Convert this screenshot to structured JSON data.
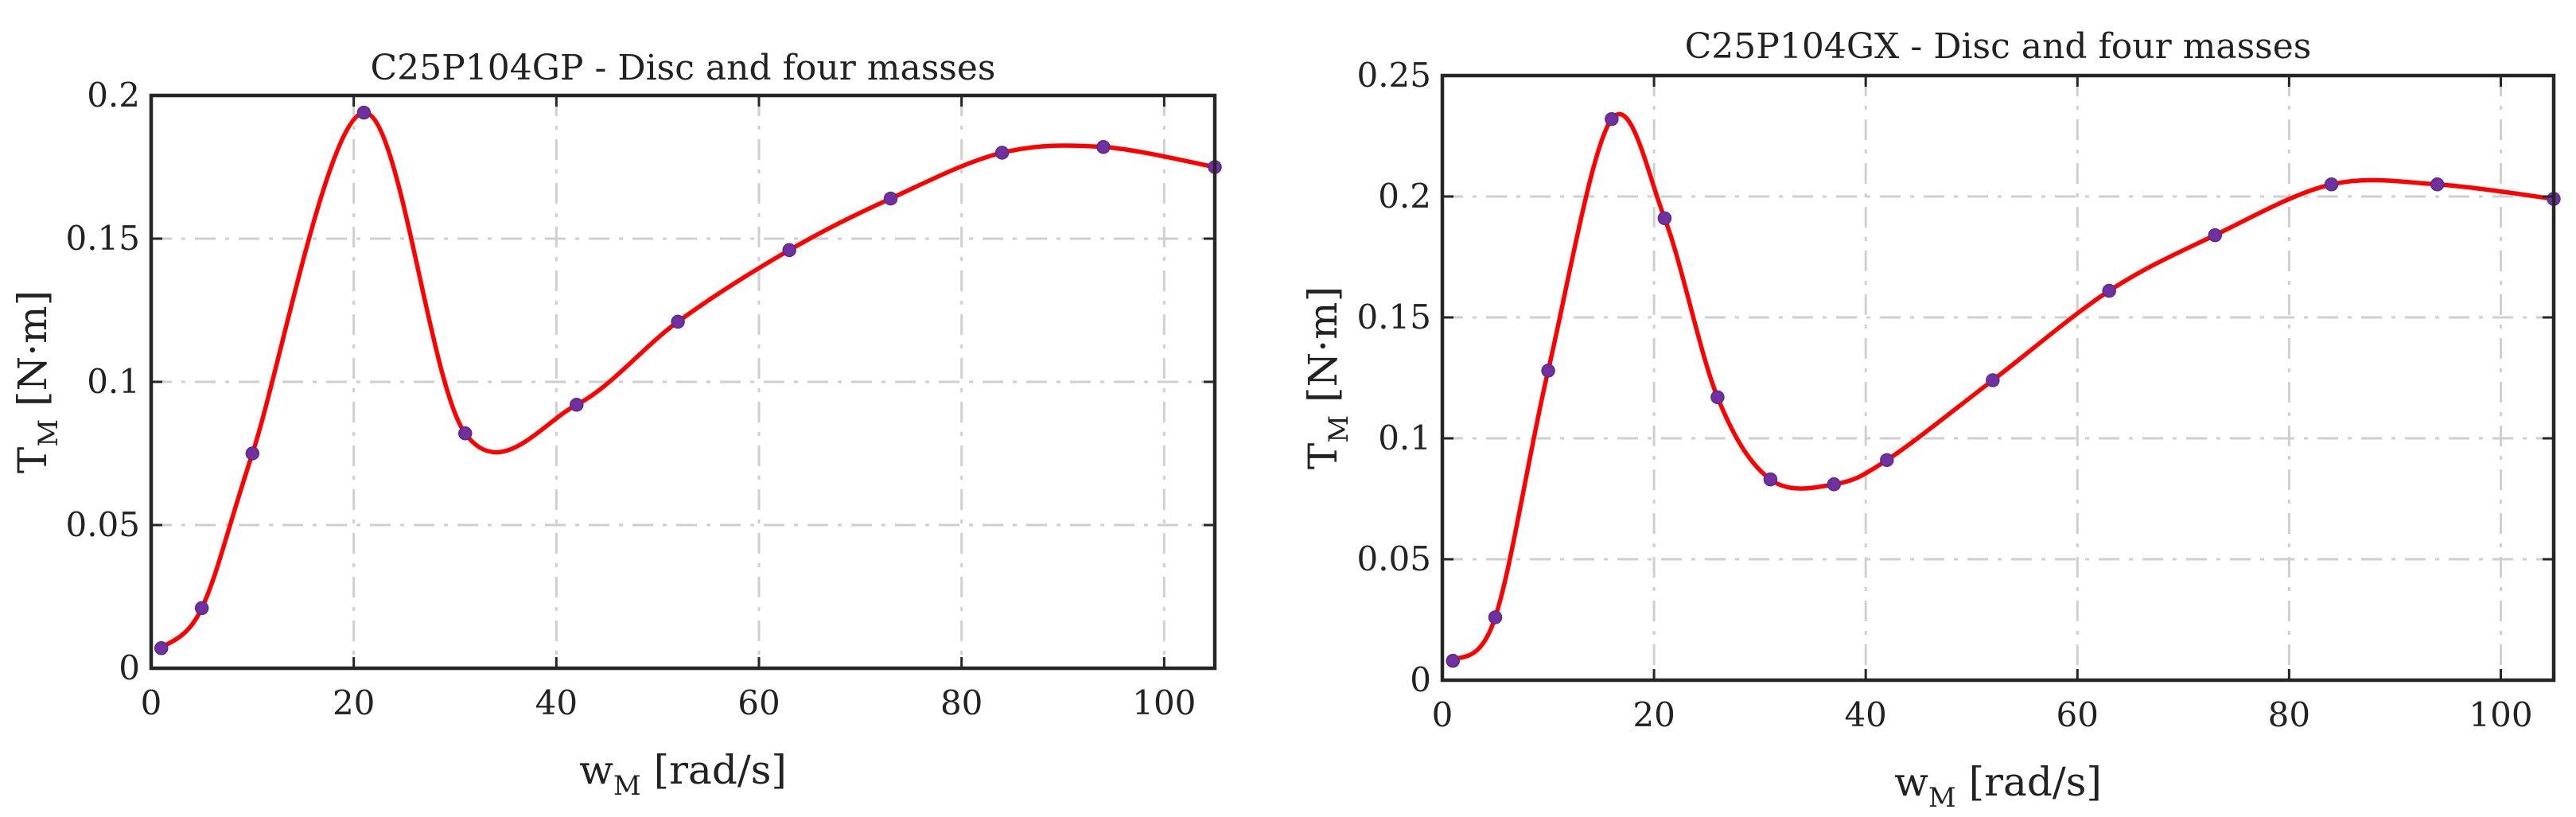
{
  "chart_data": [
    {
      "type": "line",
      "title": "C25P104GP - Disc and four masses",
      "xlabel": {
        "main": "w",
        "sub": "M",
        "unit": " [rad/s]"
      },
      "ylabel": {
        "main": "T",
        "sub": "M",
        "unit": " [N·m]"
      },
      "xlim": [
        0,
        105
      ],
      "ylim": [
        0,
        0.2
      ],
      "xticks": [
        0,
        20,
        40,
        60,
        80,
        100
      ],
      "xtick_labels": [
        "0",
        "20",
        "40",
        "60",
        "80",
        "100"
      ],
      "yticks": [
        0,
        0.05,
        0.1,
        0.15,
        0.2
      ],
      "ytick_labels": [
        "0",
        "0.05",
        "0.1",
        "0.15",
        "0.2"
      ],
      "grid": true,
      "series": [
        {
          "name": "T_M",
          "x": [
            1,
            5,
            10,
            21,
            31,
            42,
            52,
            63,
            73,
            84,
            94,
            105
          ],
          "y": [
            0.007,
            0.021,
            0.075,
            0.194,
            0.082,
            0.092,
            0.121,
            0.146,
            0.164,
            0.18,
            0.182,
            0.175
          ],
          "color": "#ff0000",
          "marker_color": "#7030a0"
        }
      ]
    },
    {
      "type": "line",
      "title": "C25P104GX - Disc and four masses",
      "xlabel": {
        "main": "w",
        "sub": "M",
        "unit": " [rad/s]"
      },
      "ylabel": {
        "main": "T",
        "sub": "M",
        "unit": " [N·m]"
      },
      "xlim": [
        0,
        105
      ],
      "ylim": [
        0,
        0.25
      ],
      "xticks": [
        0,
        20,
        40,
        60,
        80,
        100
      ],
      "xtick_labels": [
        "0",
        "20",
        "40",
        "60",
        "80",
        "100"
      ],
      "yticks": [
        0,
        0.05,
        0.1,
        0.15,
        0.2,
        0.25
      ],
      "ytick_labels": [
        "0",
        "0.05",
        "0.1",
        "0.15",
        "0.2",
        "0.25"
      ],
      "grid": true,
      "series": [
        {
          "name": "T_M",
          "x": [
            1,
            5,
            10,
            16,
            21,
            26,
            31,
            37,
            42,
            52,
            63,
            73,
            84,
            94,
            105
          ],
          "y": [
            0.008,
            0.026,
            0.128,
            0.232,
            0.191,
            0.117,
            0.083,
            0.081,
            0.091,
            0.124,
            0.161,
            0.184,
            0.205,
            0.205,
            0.199
          ],
          "color": "#ff0000",
          "marker_color": "#7030a0"
        }
      ]
    }
  ]
}
